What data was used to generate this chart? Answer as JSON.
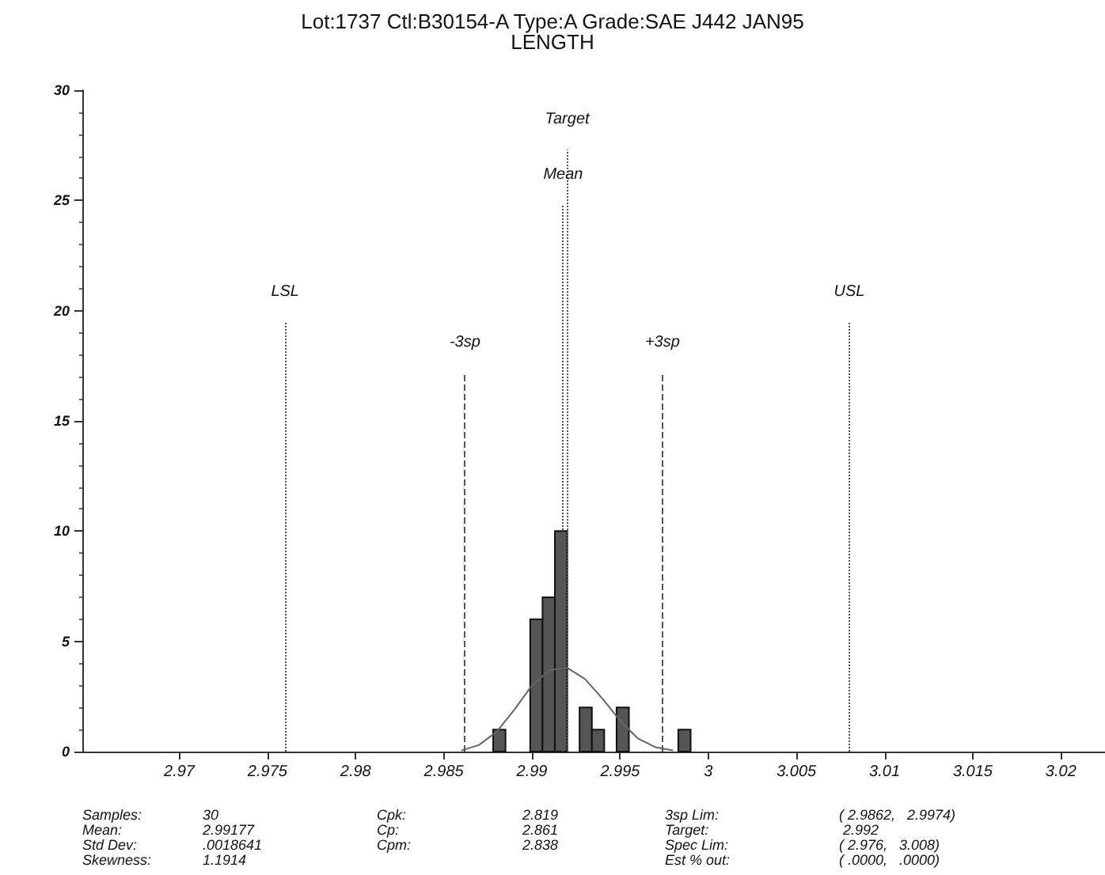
{
  "chart_data": {
    "type": "histogram",
    "title": "Lot:1737 Ctl:B30154-A Type:A Grade:SAE J442 JAN95",
    "subtitle": "LENGTH",
    "bins": [
      2.9878,
      2.9885,
      2.9892,
      2.9899,
      2.9906,
      2.9913,
      2.992,
      2.9927,
      2.9934,
      2.9941,
      2.9948,
      2.9955,
      2.9962,
      2.9969,
      2.9976,
      2.9983,
      2.999
    ],
    "values": [
      1,
      0,
      0,
      6,
      7,
      10,
      0,
      2,
      1,
      0,
      2,
      0,
      0,
      0,
      0,
      1
    ],
    "color": "#555555",
    "series": [
      {
        "type": "line",
        "color": "#666666",
        "x": [
          2.986,
          2.987,
          2.988,
          2.989,
          2.99,
          2.991,
          2.992,
          2.993,
          2.994,
          2.995,
          2.996,
          2.997,
          2.998
        ],
        "values": [
          0.05,
          0.3,
          0.9,
          1.9,
          3.0,
          3.7,
          3.8,
          3.3,
          2.4,
          1.4,
          0.6,
          0.2,
          0.05
        ]
      }
    ],
    "xlim": [
      2.9645,
      3.0225
    ],
    "xticks": [
      2.97,
      2.975,
      2.98,
      2.985,
      2.99,
      2.995,
      3,
      3.005,
      3.01,
      3.015,
      3.02
    ],
    "ylim": [
      0,
      30
    ],
    "yticks": [
      0,
      5,
      10,
      15,
      20,
      25,
      30
    ],
    "ref_lines": [
      {
        "axis": "x",
        "value": 2.976,
        "label": "LSL",
        "line_style": "dotted"
      },
      {
        "axis": "x",
        "value": 2.9862,
        "label": "-3sp",
        "line_style": "dashed"
      },
      {
        "axis": "x",
        "value": 2.99177,
        "label": "Mean",
        "line_style": "dotted"
      },
      {
        "axis": "x",
        "value": 2.992,
        "label": "Target",
        "line_style": "dotted"
      },
      {
        "axis": "x",
        "value": 2.9974,
        "label": "+3sp",
        "line_style": "dashed"
      },
      {
        "axis": "x",
        "value": 3.008,
        "label": "USL",
        "line_style": "dotted"
      }
    ],
    "annotations": [
      "Samples:\nMean:\nStd Dev:\nSkewness:",
      "30\n2.99177\n.0018641\n1.1914",
      "Cpk:\nCp:\nCpm:",
      "2.819\n2.861\n2.838",
      "3sp Lim:\nTarget:\nSpec Lim:\nEst % out:",
      "( 2.9862,   2.9974)\n 2.992\n( 2.976,   3.008)\n( .0000,   .0000)"
    ],
    "grid": false
  }
}
